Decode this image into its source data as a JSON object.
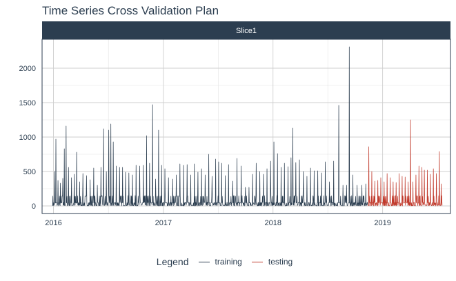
{
  "chart_data": {
    "type": "line",
    "title": "Time Series Cross Validation Plan",
    "panel_label": "Slice1",
    "xlabel": "",
    "ylabel": "",
    "xlim": [
      "2015-11-24",
      "2019-08-15"
    ],
    "ylim": [
      -110,
      2420
    ],
    "x_ticks": [
      {
        "date": "2016-01-01",
        "label": "2016"
      },
      {
        "date": "2017-01-01",
        "label": "2017"
      },
      {
        "date": "2018-01-01",
        "label": "2018"
      },
      {
        "date": "2019-01-01",
        "label": "2019"
      }
    ],
    "y_ticks": [
      0,
      500,
      1000,
      1500,
      2000
    ],
    "grid": true,
    "legend": {
      "title": "Legend",
      "placement": "bottom",
      "entries": [
        {
          "name": "training",
          "color": "#2c3e50"
        },
        {
          "name": "testing",
          "color": "#c0392b"
        }
      ]
    },
    "series": [
      {
        "name": "training",
        "color": "#2c3e50",
        "start": "2015-12-29",
        "end": "2018-11-12",
        "spikes": [
          [
            "2016-01-05",
            500
          ],
          [
            "2016-01-09",
            970
          ],
          [
            "2016-01-16",
            370
          ],
          [
            "2016-01-24",
            330
          ],
          [
            "2016-02-01",
            400
          ],
          [
            "2016-02-06",
            830
          ],
          [
            "2016-02-12",
            1160
          ],
          [
            "2016-02-20",
            560
          ],
          [
            "2016-03-01",
            410
          ],
          [
            "2016-03-10",
            460
          ],
          [
            "2016-03-18",
            780
          ],
          [
            "2016-03-28",
            350
          ],
          [
            "2016-04-08",
            470
          ],
          [
            "2016-04-20",
            440
          ],
          [
            "2016-05-02",
            380
          ],
          [
            "2016-05-14",
            550
          ],
          [
            "2016-05-26",
            300
          ],
          [
            "2016-06-07",
            560
          ],
          [
            "2016-06-16",
            1120
          ],
          [
            "2016-06-25",
            500
          ],
          [
            "2016-07-03",
            1100
          ],
          [
            "2016-07-10",
            1190
          ],
          [
            "2016-07-18",
            930
          ],
          [
            "2016-07-28",
            580
          ],
          [
            "2016-08-08",
            560
          ],
          [
            "2016-08-18",
            560
          ],
          [
            "2016-08-28",
            490
          ],
          [
            "2016-09-08",
            480
          ],
          [
            "2016-09-20",
            450
          ],
          [
            "2016-10-02",
            590
          ],
          [
            "2016-10-14",
            580
          ],
          [
            "2016-10-26",
            590
          ],
          [
            "2016-11-06",
            1020
          ],
          [
            "2016-11-16",
            620
          ],
          [
            "2016-11-26",
            1470
          ],
          [
            "2016-12-06",
            390
          ],
          [
            "2016-12-16",
            1100
          ],
          [
            "2016-12-26",
            590
          ],
          [
            "2017-01-06",
            540
          ],
          [
            "2017-01-18",
            410
          ],
          [
            "2017-02-01",
            390
          ],
          [
            "2017-02-13",
            450
          ],
          [
            "2017-02-25",
            610
          ],
          [
            "2017-03-09",
            590
          ],
          [
            "2017-03-21",
            600
          ],
          [
            "2017-04-02",
            450
          ],
          [
            "2017-04-14",
            610
          ],
          [
            "2017-04-26",
            490
          ],
          [
            "2017-05-08",
            540
          ],
          [
            "2017-05-20",
            450
          ],
          [
            "2017-06-01",
            750
          ],
          [
            "2017-06-12",
            430
          ],
          [
            "2017-06-24",
            680
          ],
          [
            "2017-07-04",
            640
          ],
          [
            "2017-07-14",
            620
          ],
          [
            "2017-07-26",
            440
          ],
          [
            "2017-08-06",
            600
          ],
          [
            "2017-08-20",
            360
          ],
          [
            "2017-09-03",
            690
          ],
          [
            "2017-09-17",
            580
          ],
          [
            "2017-10-01",
            270
          ],
          [
            "2017-10-13",
            270
          ],
          [
            "2017-10-25",
            460
          ],
          [
            "2017-11-06",
            620
          ],
          [
            "2017-11-18",
            500
          ],
          [
            "2017-11-30",
            460
          ],
          [
            "2017-12-12",
            540
          ],
          [
            "2017-12-24",
            650
          ],
          [
            "2018-01-04",
            930
          ],
          [
            "2018-01-16",
            760
          ],
          [
            "2018-01-28",
            560
          ],
          [
            "2018-02-08",
            620
          ],
          [
            "2018-02-20",
            570
          ],
          [
            "2018-03-02",
            700
          ],
          [
            "2018-03-08",
            1130
          ],
          [
            "2018-03-18",
            630
          ],
          [
            "2018-03-30",
            670
          ],
          [
            "2018-04-12",
            500
          ],
          [
            "2018-04-24",
            430
          ],
          [
            "2018-05-06",
            550
          ],
          [
            "2018-05-18",
            510
          ],
          [
            "2018-05-30",
            510
          ],
          [
            "2018-06-12",
            480
          ],
          [
            "2018-06-24",
            640
          ],
          [
            "2018-07-08",
            350
          ],
          [
            "2018-07-22",
            650
          ],
          [
            "2018-08-08",
            1460
          ],
          [
            "2018-08-22",
            300
          ],
          [
            "2018-09-03",
            300
          ],
          [
            "2018-09-12",
            2310
          ],
          [
            "2018-09-24",
            450
          ],
          [
            "2018-10-08",
            300
          ],
          [
            "2018-10-24",
            300
          ],
          [
            "2018-11-06",
            320
          ]
        ]
      },
      {
        "name": "testing",
        "color": "#c0392b",
        "start": "2018-11-13",
        "end": "2019-07-18",
        "spikes": [
          [
            "2018-11-16",
            860
          ],
          [
            "2018-11-26",
            500
          ],
          [
            "2018-12-06",
            360
          ],
          [
            "2018-12-16",
            370
          ],
          [
            "2018-12-26",
            410
          ],
          [
            "2019-01-06",
            350
          ],
          [
            "2019-01-16",
            470
          ],
          [
            "2019-01-26",
            410
          ],
          [
            "2019-02-05",
            350
          ],
          [
            "2019-02-15",
            340
          ],
          [
            "2019-02-25",
            470
          ],
          [
            "2019-03-07",
            430
          ],
          [
            "2019-03-17",
            420
          ],
          [
            "2019-03-27",
            350
          ],
          [
            "2019-04-04",
            1250
          ],
          [
            "2019-04-12",
            350
          ],
          [
            "2019-04-22",
            450
          ],
          [
            "2019-05-02",
            580
          ],
          [
            "2019-05-12",
            560
          ],
          [
            "2019-05-20",
            520
          ],
          [
            "2019-05-30",
            520
          ],
          [
            "2019-06-09",
            460
          ],
          [
            "2019-06-19",
            540
          ],
          [
            "2019-06-29",
            470
          ],
          [
            "2019-07-09",
            790
          ],
          [
            "2019-07-15",
            320
          ]
        ]
      }
    ]
  }
}
